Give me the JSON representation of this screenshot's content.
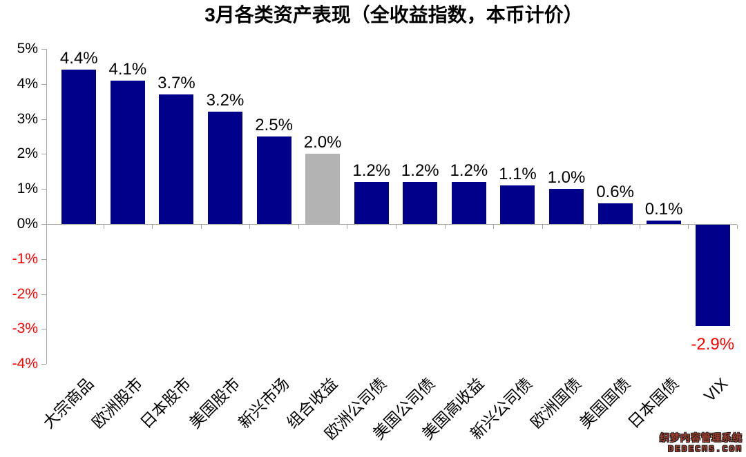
{
  "colors": {
    "bar": "#00008B",
    "highlight_bar": "#b3b3b3",
    "negative_label": "#ff0000",
    "axis": "#a6a6a6",
    "label": "#000000"
  },
  "watermark": {
    "line1": "织梦内容管理系统",
    "line2": "DEDECMS.COM"
  },
  "chart_data": {
    "type": "bar",
    "title": "3月各类资产表现（全收益指数，本币计价）",
    "categories": [
      "大宗商品",
      "欧洲股市",
      "日本股市",
      "美国股市",
      "新兴市场",
      "组合收益",
      "欧洲公司债",
      "美国公司债",
      "美国高收益",
      "新兴公司债",
      "欧洲国债",
      "美国国债",
      "日本国债",
      "VIX"
    ],
    "values": [
      4.4,
      4.1,
      3.7,
      3.2,
      2.5,
      2.0,
      1.2,
      1.2,
      1.2,
      1.1,
      1.0,
      0.6,
      0.1,
      -2.9
    ],
    "labels": [
      "4.4%",
      "4.1%",
      "3.7%",
      "3.2%",
      "2.5%",
      "2.0%",
      "1.2%",
      "1.2%",
      "1.2%",
      "1.1%",
      "1.0%",
      "0.6%",
      "0.1%",
      "-2.9%"
    ],
    "highlight_index": 5,
    "highlight_category": "组合收益",
    "ylim": [
      -4,
      5
    ],
    "ytick_step": 1,
    "yticklabels": [
      "5%",
      "4%",
      "3%",
      "2%",
      "1%",
      "0%",
      "-1%",
      "-2%",
      "-3%",
      "-4%"
    ],
    "negative_ticks_red": true,
    "grid": false,
    "legend": null,
    "xlabel": "",
    "ylabel": ""
  }
}
